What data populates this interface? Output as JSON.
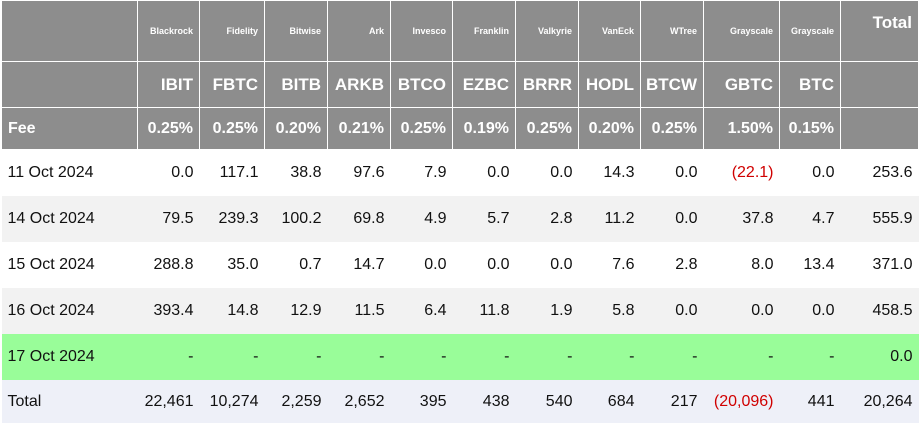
{
  "header": {
    "issuers": [
      "Blackrock",
      "Fidelity",
      "Bitwise",
      "Ark",
      "Invesco",
      "Franklin",
      "Valkyrie",
      "VanEck",
      "WTree",
      "Grayscale",
      "Grayscale"
    ],
    "total": "Total",
    "tickers": [
      "IBIT",
      "FBTC",
      "BITB",
      "ARKB",
      "BTCO",
      "EZBC",
      "BRRR",
      "HODL",
      "BTCW",
      "GBTC",
      "BTC"
    ],
    "fee_label": "Fee",
    "fees": [
      "0.25%",
      "0.25%",
      "0.20%",
      "0.21%",
      "0.25%",
      "0.19%",
      "0.25%",
      "0.20%",
      "0.25%",
      "1.50%",
      "0.15%"
    ]
  },
  "rows": [
    [
      "11 Oct 2024",
      "0.0",
      "117.1",
      "38.8",
      "97.6",
      "7.9",
      "0.0",
      "0.0",
      "14.3",
      "0.0",
      "(22.1)",
      "0.0",
      "253.6"
    ],
    [
      "14 Oct 2024",
      "79.5",
      "239.3",
      "100.2",
      "69.8",
      "4.9",
      "5.7",
      "2.8",
      "11.2",
      "0.0",
      "37.8",
      "4.7",
      "555.9"
    ],
    [
      "15 Oct 2024",
      "288.8",
      "35.0",
      "0.7",
      "14.7",
      "0.0",
      "0.0",
      "0.0",
      "7.6",
      "2.8",
      "8.0",
      "13.4",
      "371.0"
    ],
    [
      "16 Oct 2024",
      "393.4",
      "14.8",
      "12.9",
      "11.5",
      "6.4",
      "11.8",
      "1.9",
      "5.8",
      "0.0",
      "0.0",
      "0.0",
      "458.5"
    ],
    [
      "17 Oct 2024",
      "-",
      "-",
      "-",
      "-",
      "-",
      "-",
      "-",
      "-",
      "-",
      "-",
      "-",
      "0.0"
    ]
  ],
  "total_row": [
    "Total",
    "22,461",
    "10,274",
    "2,259",
    "2,652",
    "395",
    "438",
    "540",
    "684",
    "217",
    "(20,096)",
    "441",
    "20,264"
  ]
}
